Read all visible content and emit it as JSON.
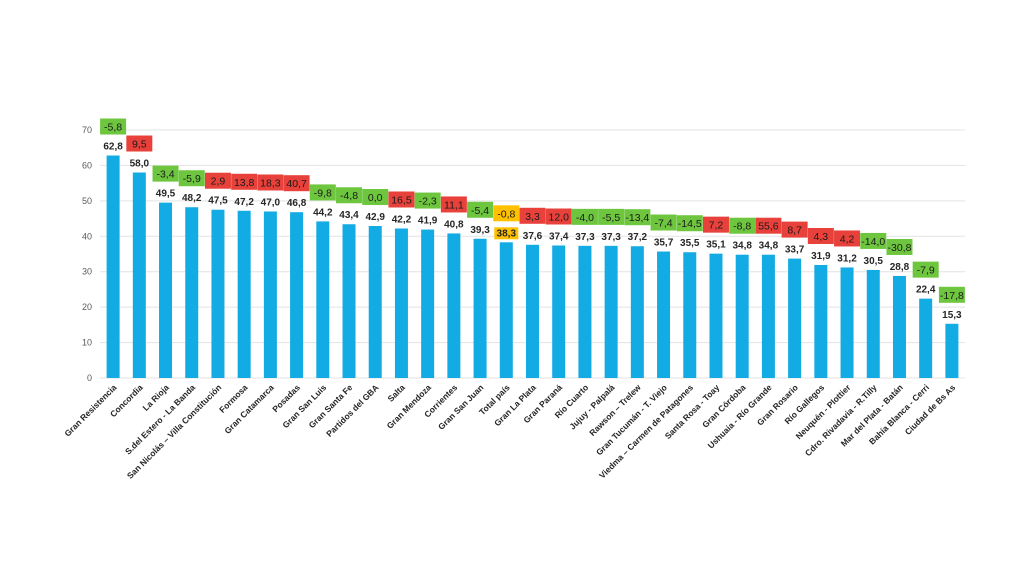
{
  "chart_data": {
    "type": "bar",
    "title": "",
    "xlabel": "",
    "ylabel": "",
    "ylim": [
      0,
      70
    ],
    "yticks": [
      0,
      10,
      20,
      30,
      40,
      50,
      60,
      70
    ],
    "grid": true,
    "bar_color": "#12ABE3",
    "badge_colors": {
      "positive": "#E8413B",
      "negative": "#6DC63E",
      "total": "#FFC000"
    },
    "categories": [
      "Gran Resistencia",
      "Concordia",
      "La Rioja",
      "S.del Estero - La Banda",
      "San Nicolás – Villa Constitución",
      "Formosa",
      "Gran Catamarca",
      "Posadas",
      "Gran San Luis",
      "Gran Santa Fe",
      "Partidos del GBA",
      "Salta",
      "Gran Mendoza",
      "Corrientes",
      "Gran San Juan",
      "Total país",
      "Gran La Plata",
      "Gran Paraná",
      "Río Cuarto",
      "Jujuy - Palpalá",
      "Rawson – Trelew",
      "Gran Tucumán - T. Viejo",
      "Viedma – Carmen de Patagones",
      "Santa Rosa - Toay",
      "Gran Córdoba",
      "Ushuaia - Río Grande",
      "Gran Rosario",
      "Río Gallegos",
      "Neuquén - Plottier",
      "Cdro. Rivadavia - R.Tilly",
      "Mar del Plata - Batán",
      "Bahía Blanca - Cerri",
      "Ciudad de Bs As"
    ],
    "value_labels": [
      "62,8",
      "58,0",
      "49,5",
      "48,2",
      "47,5",
      "47,2",
      "47,0",
      "46,8",
      "44,2",
      "43,4",
      "42,9",
      "42,2",
      "41,9",
      "40,8",
      "39,3",
      "38,3",
      "37,6",
      "37,4",
      "37,3",
      "37,3",
      "37,2",
      "35,7",
      "35,5",
      "35,1",
      "34,8",
      "34,8",
      "33,7",
      "31,9",
      "31,2",
      "30,5",
      "28,8",
      "22,4",
      "15,3"
    ],
    "values": [
      62.8,
      58.0,
      49.5,
      48.2,
      47.5,
      47.2,
      47.0,
      46.8,
      44.2,
      43.4,
      42.9,
      42.2,
      41.9,
      40.8,
      39.3,
      38.3,
      37.6,
      37.4,
      37.3,
      37.3,
      37.2,
      35.7,
      35.5,
      35.1,
      34.8,
      34.8,
      33.7,
      31.9,
      31.2,
      30.5,
      28.8,
      22.4,
      15.3
    ],
    "changes": [
      "-5,8",
      "9,5",
      "-3,4",
      "-5,9",
      "2,9",
      "13,8",
      "18,3",
      "40,7",
      "-9,8",
      "-4,8",
      "0,0",
      "16,5",
      "-2,3",
      "11,1",
      "-5,4",
      "-0,8",
      "3,3",
      "12,0",
      "-4,0",
      "-5,5",
      "-13,4",
      "-7,4",
      "-14,5",
      "7,2",
      "-8,8",
      "55,6",
      "8,7",
      "4,3",
      "4,2",
      "-14,0",
      "-30,8",
      "-7,9",
      "-17,8"
    ],
    "change_types": [
      "negative",
      "positive",
      "negative",
      "negative",
      "positive",
      "positive",
      "positive",
      "positive",
      "negative",
      "negative",
      "negative",
      "positive",
      "negative",
      "positive",
      "negative",
      "negative",
      "positive",
      "positive",
      "negative",
      "negative",
      "negative",
      "negative",
      "negative",
      "positive",
      "negative",
      "positive",
      "positive",
      "positive",
      "positive",
      "negative",
      "negative",
      "negative",
      "negative"
    ],
    "highlight_index": 15
  }
}
